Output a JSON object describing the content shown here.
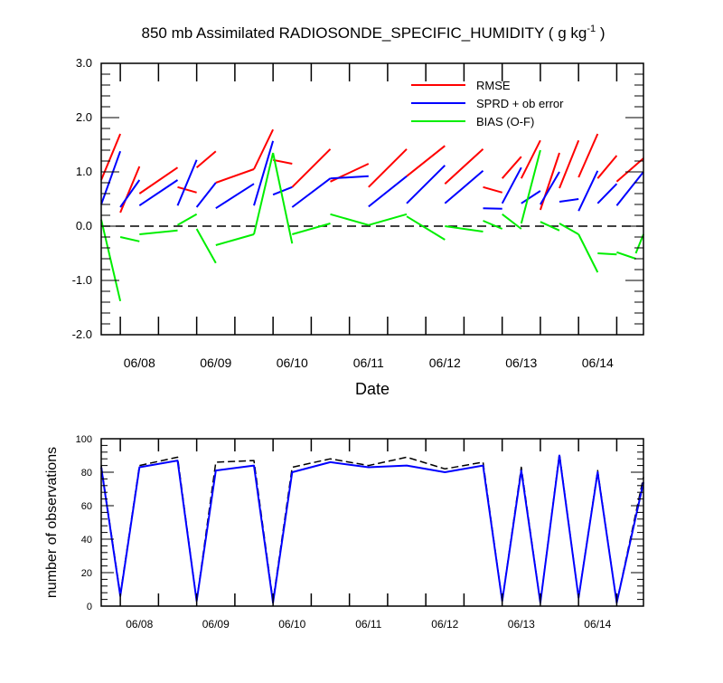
{
  "title_main": "850 mb Assimilated RADIOSONDE_SPECIFIC_HUMIDITY ( g kg",
  "title_sup": "-1",
  "title_end": " )",
  "chart_data": [
    {
      "type": "line",
      "title": "850 mb Assimilated RADIOSONDE_SPECIFIC_HUMIDITY ( g kg-1 )",
      "xlabel": "Date",
      "ylabel": "",
      "ylim": [
        -2.0,
        3.0
      ],
      "xlim": [
        0.0,
        7.1
      ],
      "y_ticks": [
        -2.0,
        -1.0,
        0.0,
        1.0,
        2.0,
        3.0
      ],
      "y_tick_labels": [
        "-2.0",
        "-1.0",
        "0.0",
        "1.0",
        "2.0",
        "3.0"
      ],
      "x_tick_positions": [
        0.5,
        1.5,
        2.5,
        3.5,
        4.5,
        5.5,
        6.5
      ],
      "x_tick_labels": [
        "06/08",
        "06/09",
        "06/10",
        "06/11",
        "06/12",
        "06/13",
        "06/14"
      ],
      "legend_position": "top-right",
      "zero_line": true,
      "series": [
        {
          "name": "RMSE",
          "color": "#ff0000",
          "segments": [
            [
              [
                0.0,
                0.85
              ],
              [
                0.25,
                1.7
              ]
            ],
            [
              [
                0.25,
                0.25
              ],
              [
                0.5,
                1.1
              ]
            ],
            [
              [
                0.5,
                0.6
              ],
              [
                1.0,
                1.08
              ]
            ],
            [
              [
                1.0,
                0.72
              ],
              [
                1.25,
                0.62
              ]
            ],
            [
              [
                1.25,
                1.08
              ],
              [
                1.5,
                1.38
              ]
            ],
            [
              [
                1.5,
                0.8
              ],
              [
                2.0,
                1.05
              ]
            ],
            [
              [
                2.0,
                1.05
              ],
              [
                2.25,
                1.78
              ]
            ],
            [
              [
                2.25,
                1.22
              ],
              [
                2.5,
                1.15
              ]
            ],
            [
              [
                2.5,
                0.72
              ],
              [
                3.0,
                1.42
              ]
            ],
            [
              [
                3.0,
                0.82
              ],
              [
                3.5,
                1.15
              ]
            ],
            [
              [
                3.5,
                0.72
              ],
              [
                4.0,
                1.42
              ]
            ],
            [
              [
                4.0,
                0.92
              ],
              [
                4.5,
                1.48
              ]
            ],
            [
              [
                4.5,
                0.78
              ],
              [
                5.0,
                1.42
              ]
            ],
            [
              [
                5.0,
                0.72
              ],
              [
                5.25,
                0.62
              ]
            ],
            [
              [
                5.25,
                0.88
              ],
              [
                5.5,
                1.28
              ]
            ],
            [
              [
                5.5,
                0.88
              ],
              [
                5.75,
                1.58
              ]
            ],
            [
              [
                5.75,
                0.3
              ],
              [
                6.0,
                1.35
              ]
            ],
            [
              [
                6.0,
                0.7
              ],
              [
                6.25,
                1.58
              ]
            ],
            [
              [
                6.25,
                0.9
              ],
              [
                6.5,
                1.7
              ]
            ],
            [
              [
                6.5,
                0.88
              ],
              [
                6.75,
                1.3
              ]
            ],
            [
              [
                6.75,
                0.82
              ],
              [
                7.1,
                1.25
              ]
            ]
          ]
        },
        {
          "name": "SPRD + ob error",
          "color": "#0000ff",
          "segments": [
            [
              [
                0.0,
                0.4
              ],
              [
                0.25,
                1.38
              ]
            ],
            [
              [
                0.25,
                0.35
              ],
              [
                0.5,
                0.85
              ]
            ],
            [
              [
                0.5,
                0.38
              ],
              [
                1.0,
                0.85
              ]
            ],
            [
              [
                1.0,
                0.38
              ],
              [
                1.25,
                1.22
              ]
            ],
            [
              [
                1.25,
                0.35
              ],
              [
                1.5,
                0.8
              ]
            ],
            [
              [
                1.5,
                0.33
              ],
              [
                2.0,
                0.78
              ]
            ],
            [
              [
                2.0,
                0.38
              ],
              [
                2.25,
                1.57
              ]
            ],
            [
              [
                2.25,
                0.58
              ],
              [
                2.5,
                0.72
              ]
            ],
            [
              [
                2.5,
                0.35
              ],
              [
                3.0,
                0.88
              ]
            ],
            [
              [
                3.0,
                0.88
              ],
              [
                3.5,
                0.92
              ]
            ],
            [
              [
                3.5,
                0.36
              ],
              [
                4.0,
                0.92
              ]
            ],
            [
              [
                4.0,
                0.42
              ],
              [
                4.5,
                1.12
              ]
            ],
            [
              [
                4.5,
                0.42
              ],
              [
                5.0,
                1.02
              ]
            ],
            [
              [
                5.0,
                0.33
              ],
              [
                5.25,
                0.32
              ]
            ],
            [
              [
                5.25,
                0.42
              ],
              [
                5.5,
                1.08
              ]
            ],
            [
              [
                5.5,
                0.42
              ],
              [
                5.75,
                0.65
              ]
            ],
            [
              [
                5.75,
                0.4
              ],
              [
                6.0,
                1.0
              ]
            ],
            [
              [
                6.0,
                0.45
              ],
              [
                6.25,
                0.5
              ]
            ],
            [
              [
                6.25,
                0.28
              ],
              [
                6.5,
                1.02
              ]
            ],
            [
              [
                6.5,
                0.42
              ],
              [
                6.75,
                0.78
              ]
            ],
            [
              [
                6.75,
                0.38
              ],
              [
                7.1,
                1.0
              ]
            ]
          ]
        },
        {
          "name": "BIAS (O-F)",
          "color": "#00ee00",
          "segments": [
            [
              [
                0.0,
                0.12
              ],
              [
                0.25,
                -1.38
              ]
            ],
            [
              [
                0.25,
                -0.2
              ],
              [
                0.5,
                -0.28
              ]
            ],
            [
              [
                0.5,
                -0.15
              ],
              [
                1.0,
                -0.08
              ]
            ],
            [
              [
                1.0,
                0.02
              ],
              [
                1.25,
                0.22
              ]
            ],
            [
              [
                1.25,
                -0.05
              ],
              [
                1.5,
                -0.68
              ]
            ],
            [
              [
                1.5,
                -0.35
              ],
              [
                2.0,
                -0.15
              ]
            ],
            [
              [
                2.0,
                -0.15
              ],
              [
                2.25,
                1.35
              ]
            ],
            [
              [
                2.25,
                1.35
              ],
              [
                2.5,
                -0.32
              ]
            ],
            [
              [
                2.5,
                -0.15
              ],
              [
                3.0,
                0.05
              ]
            ],
            [
              [
                3.0,
                0.22
              ],
              [
                3.5,
                0.02
              ]
            ],
            [
              [
                3.5,
                0.02
              ],
              [
                4.0,
                0.22
              ]
            ],
            [
              [
                4.0,
                0.18
              ],
              [
                4.5,
                -0.25
              ]
            ],
            [
              [
                4.5,
                0.0
              ],
              [
                5.0,
                -0.1
              ]
            ],
            [
              [
                5.0,
                0.1
              ],
              [
                5.25,
                -0.05
              ]
            ],
            [
              [
                5.25,
                0.22
              ],
              [
                5.5,
                -0.05
              ]
            ],
            [
              [
                5.5,
                0.05
              ],
              [
                5.75,
                1.4
              ]
            ],
            [
              [
                5.75,
                0.08
              ],
              [
                6.0,
                -0.08
              ]
            ],
            [
              [
                6.0,
                0.05
              ],
              [
                6.25,
                -0.15
              ]
            ],
            [
              [
                6.25,
                -0.15
              ],
              [
                6.5,
                -0.85
              ]
            ],
            [
              [
                6.5,
                -0.5
              ],
              [
                6.75,
                -0.52
              ]
            ],
            [
              [
                6.75,
                -0.48
              ],
              [
                7.0,
                -0.6
              ]
            ],
            [
              [
                7.0,
                -0.5
              ],
              [
                7.1,
                -0.15
              ]
            ]
          ]
        }
      ]
    },
    {
      "type": "line",
      "title": "",
      "xlabel": "",
      "ylabel": "number of observations",
      "ylim": [
        0,
        100
      ],
      "xlim": [
        0.0,
        7.1
      ],
      "y_ticks": [
        0,
        20,
        40,
        60,
        80,
        100
      ],
      "y_tick_labels": [
        "0",
        "20",
        "40",
        "60",
        "80",
        "100"
      ],
      "x_tick_positions": [
        0.5,
        1.5,
        2.5,
        3.5,
        4.5,
        5.5,
        6.5
      ],
      "x_tick_labels": [
        "06/08",
        "06/09",
        "06/10",
        "06/11",
        "06/12",
        "06/13",
        "06/14"
      ],
      "series": [
        {
          "name": "",
          "color": "#000000",
          "dashed": true,
          "x": [
            0.0,
            0.25,
            0.5,
            1.0,
            1.25,
            1.5,
            2.0,
            2.25,
            2.5,
            3.0,
            3.5,
            4.0,
            4.5,
            5.0,
            5.25,
            5.5,
            5.75,
            6.0,
            6.25,
            6.5,
            6.75,
            7.1
          ],
          "values": [
            84,
            7,
            84,
            89,
            3,
            86,
            87,
            3,
            83,
            88,
            84,
            89,
            82,
            86,
            3,
            83,
            2,
            91,
            5,
            81,
            2,
            77
          ]
        },
        {
          "name": "",
          "color": "#0000ff",
          "dashed": false,
          "x": [
            0.0,
            0.25,
            0.5,
            1.0,
            1.25,
            1.5,
            2.0,
            2.25,
            2.5,
            3.0,
            3.5,
            4.0,
            4.5,
            5.0,
            5.25,
            5.5,
            5.75,
            6.0,
            6.25,
            6.5,
            6.75,
            7.1
          ],
          "values": [
            83,
            6,
            83,
            87,
            3,
            81,
            84,
            2,
            80,
            86,
            83,
            84,
            80,
            84,
            3,
            81,
            2,
            90,
            5,
            80,
            2,
            74
          ]
        }
      ]
    }
  ]
}
